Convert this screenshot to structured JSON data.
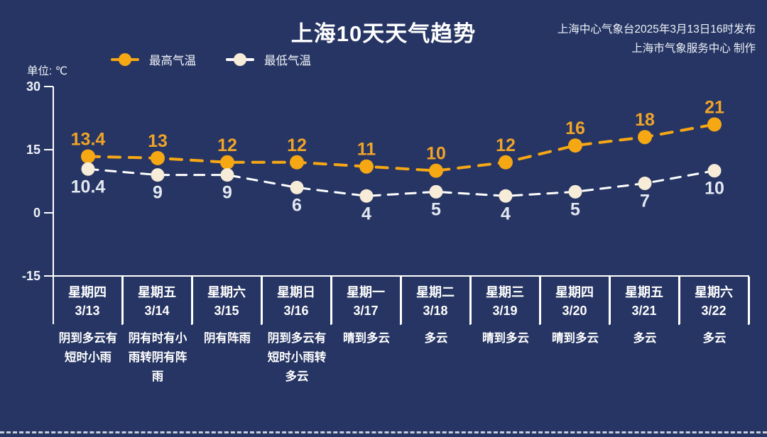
{
  "page": {
    "background": "#263563"
  },
  "header": {
    "title": "上海10天天气趋势",
    "source_line1": "上海中心气象台2025年3月13日16时发布",
    "source_line2": "上海市气象服务中心 制作"
  },
  "unit_label": "单位: ℃",
  "legend": [
    {
      "label": "最高气温",
      "color": "#f6a714"
    },
    {
      "label": "最低气温",
      "color": "#f6ecd8",
      "line_color": "#ffffff"
    }
  ],
  "chart_data": {
    "type": "line",
    "title": "上海10天天气趋势",
    "ylabel": "单位: ℃",
    "ylim": [
      -15,
      30
    ],
    "yticks": [
      30,
      15,
      0,
      -15
    ],
    "grid": false,
    "legend_position": "top",
    "line_style": "dashed",
    "categories": [
      "3/13",
      "3/14",
      "3/15",
      "3/16",
      "3/17",
      "3/18",
      "3/19",
      "3/20",
      "3/21",
      "3/22"
    ],
    "series": [
      {
        "name": "最高气温",
        "values": [
          13.4,
          13,
          12,
          12,
          11,
          10,
          12,
          16,
          18,
          21
        ],
        "color": "#f6a714",
        "marker_color": "#f6a714",
        "label_color": "#f0a428"
      },
      {
        "name": "最低气温",
        "values": [
          10.4,
          9,
          9,
          6,
          4,
          5,
          4,
          5,
          7,
          10
        ],
        "color": "#ffffff",
        "marker_color": "#f6ecd8",
        "label_color": "#e4e8f2"
      }
    ]
  },
  "days": [
    {
      "weekday": "星期四",
      "date": "3/13",
      "weather": "阴到多云有短时小雨"
    },
    {
      "weekday": "星期五",
      "date": "3/14",
      "weather": "阴有时有小雨转阴有阵雨"
    },
    {
      "weekday": "星期六",
      "date": "3/15",
      "weather": "阴有阵雨"
    },
    {
      "weekday": "星期日",
      "date": "3/16",
      "weather": "阴到多云有短时小雨转多云"
    },
    {
      "weekday": "星期一",
      "date": "3/17",
      "weather": "晴到多云"
    },
    {
      "weekday": "星期二",
      "date": "3/18",
      "weather": "多云"
    },
    {
      "weekday": "星期三",
      "date": "3/19",
      "weather": "晴到多云"
    },
    {
      "weekday": "星期四",
      "date": "3/20",
      "weather": "晴到多云"
    },
    {
      "weekday": "星期五",
      "date": "3/21",
      "weather": "多云"
    },
    {
      "weekday": "星期六",
      "date": "3/22",
      "weather": "多云"
    }
  ]
}
